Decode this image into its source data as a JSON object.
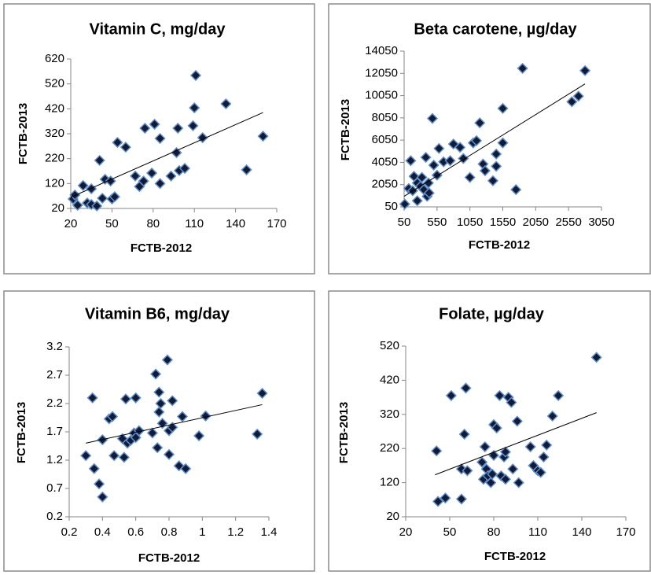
{
  "chart_data": [
    {
      "type": "scatter",
      "title": "Vitamin C, mg/day",
      "xlabel": "FCTB-2012",
      "ylabel": "FCTB-2013",
      "x": [
        21.7,
        23,
        25,
        29,
        32,
        35,
        35,
        39,
        41,
        43,
        45,
        49,
        50,
        52,
        54,
        60,
        67,
        70,
        73,
        74,
        81,
        79,
        85,
        85,
        93,
        97,
        98,
        99,
        103,
        109,
        110,
        111,
        116,
        133,
        148,
        160
      ],
      "y": [
        58,
        74,
        33,
        112,
        42,
        99,
        36,
        30,
        213,
        61,
        137,
        130,
        58,
        67,
        285,
        266,
        150,
        108,
        130,
        342,
        358,
        162,
        120,
        301,
        150,
        244,
        342,
        172,
        181,
        352,
        424,
        554,
        304,
        440,
        175,
        310
      ],
      "xlim": [
        20,
        170
      ],
      "ylim": [
        20,
        620
      ],
      "xticks": [
        20,
        50,
        80,
        110,
        140,
        170
      ],
      "yticks": [
        20,
        120,
        220,
        320,
        420,
        520,
        620
      ],
      "color": "#141a33",
      "edgecolor": "#5b8fd0",
      "trendline": {
        "x": [
          20,
          160
        ],
        "y": [
          65,
          405
        ]
      }
    },
    {
      "type": "scatter",
      "title": "Beta carotene, µg/day",
      "xlabel": "FCTB-2012",
      "ylabel": "FCTB-2013",
      "x": [
        60,
        120,
        150,
        180,
        200,
        250,
        250,
        300,
        320,
        350,
        380,
        400,
        420,
        430,
        480,
        500,
        550,
        580,
        650,
        750,
        800,
        900,
        950,
        1050,
        1100,
        1150,
        1200,
        1250,
        1280,
        1400,
        1450,
        1450,
        1550,
        1550,
        1750,
        1850,
        2600,
        2700,
        2800
      ],
      "y": [
        300,
        1700,
        4200,
        1500,
        2800,
        600,
        2200,
        1900,
        2700,
        1600,
        4500,
        1000,
        2200,
        1300,
        8000,
        3800,
        2900,
        5300,
        4100,
        4200,
        5700,
        5400,
        4400,
        2700,
        5800,
        6000,
        7600,
        3900,
        3300,
        2400,
        4800,
        3700,
        5800,
        8900,
        1600,
        12500,
        9500,
        10000,
        12300
      ],
      "xlim": [
        50,
        3050
      ],
      "ylim": [
        50,
        14050
      ],
      "xticks": [
        50,
        550,
        1050,
        1550,
        2050,
        2550,
        3050
      ],
      "yticks": [
        50,
        2050,
        4050,
        6050,
        8050,
        10050,
        12050,
        14050
      ],
      "color": "#141a33",
      "edgecolor": "#5b8fd0",
      "trendline": {
        "x": [
          50,
          2800
        ],
        "y": [
          1000,
          11100
        ]
      }
    },
    {
      "type": "scatter",
      "title": "Vitamin B6, mg/day",
      "xlabel": "FCTB-2012",
      "ylabel": "FCTB-2013",
      "x": [
        0.3,
        0.34,
        0.35,
        0.38,
        0.4,
        0.4,
        0.44,
        0.46,
        0.47,
        0.52,
        0.53,
        0.54,
        0.55,
        0.57,
        0.59,
        0.6,
        0.6,
        0.62,
        0.7,
        0.72,
        0.73,
        0.74,
        0.74,
        0.75,
        0.76,
        0.79,
        0.8,
        0.8,
        0.82,
        0.82,
        0.86,
        0.88,
        0.9,
        0.98,
        1.02,
        1.33,
        1.36
      ],
      "y": [
        1.28,
        2.3,
        1.05,
        0.78,
        0.55,
        1.56,
        1.93,
        1.97,
        1.28,
        1.58,
        1.25,
        2.28,
        1.5,
        1.55,
        1.68,
        2.3,
        1.6,
        1.72,
        1.68,
        2.72,
        1.42,
        2.05,
        2.4,
        2.2,
        1.85,
        2.97,
        1.72,
        1.3,
        2.25,
        1.78,
        1.1,
        1.97,
        1.05,
        1.63,
        1.98,
        1.66,
        2.38
      ],
      "xlim": [
        0.2,
        1.4
      ],
      "ylim": [
        0.2,
        3.2
      ],
      "xticks": [
        0.2,
        0.4,
        0.6,
        0.8,
        1,
        1.2,
        1.4
      ],
      "yticks": [
        0.2,
        0.7,
        1.2,
        1.7,
        2.2,
        2.7,
        3.2
      ],
      "color": "#141a33",
      "edgecolor": "#5b8fd0",
      "trendline": {
        "x": [
          0.3,
          1.36
        ],
        "y": [
          1.5,
          2.18
        ]
      }
    },
    {
      "type": "scatter",
      "title": "Folate, µg/day",
      "xlabel": "FCTB-2012",
      "ylabel": "FCTB-2013",
      "x": [
        41,
        42,
        47,
        51,
        58,
        58,
        60,
        61,
        62,
        72,
        73,
        74,
        75,
        76,
        78,
        79,
        80,
        80,
        82,
        84,
        85,
        87,
        88,
        88,
        90,
        92,
        93,
        96,
        97,
        105,
        107,
        110,
        112,
        114,
        116,
        120,
        124,
        150
      ],
      "y": [
        213,
        65,
        75,
        375,
        72,
        160,
        262,
        397,
        155,
        180,
        130,
        225,
        160,
        140,
        120,
        145,
        200,
        290,
        280,
        375,
        140,
        195,
        130,
        210,
        370,
        355,
        160,
        300,
        120,
        225,
        170,
        155,
        150,
        195,
        230,
        315,
        375,
        487
      ],
      "xlim": [
        20,
        170
      ],
      "ylim": [
        20,
        520
      ],
      "xticks": [
        20,
        50,
        80,
        110,
        140,
        170
      ],
      "yticks": [
        20,
        120,
        220,
        320,
        420,
        520
      ],
      "color": "#141a33",
      "edgecolor": "#5b8fd0",
      "trendline": {
        "x": [
          40,
          150
        ],
        "y": [
          143,
          325
        ]
      }
    }
  ]
}
